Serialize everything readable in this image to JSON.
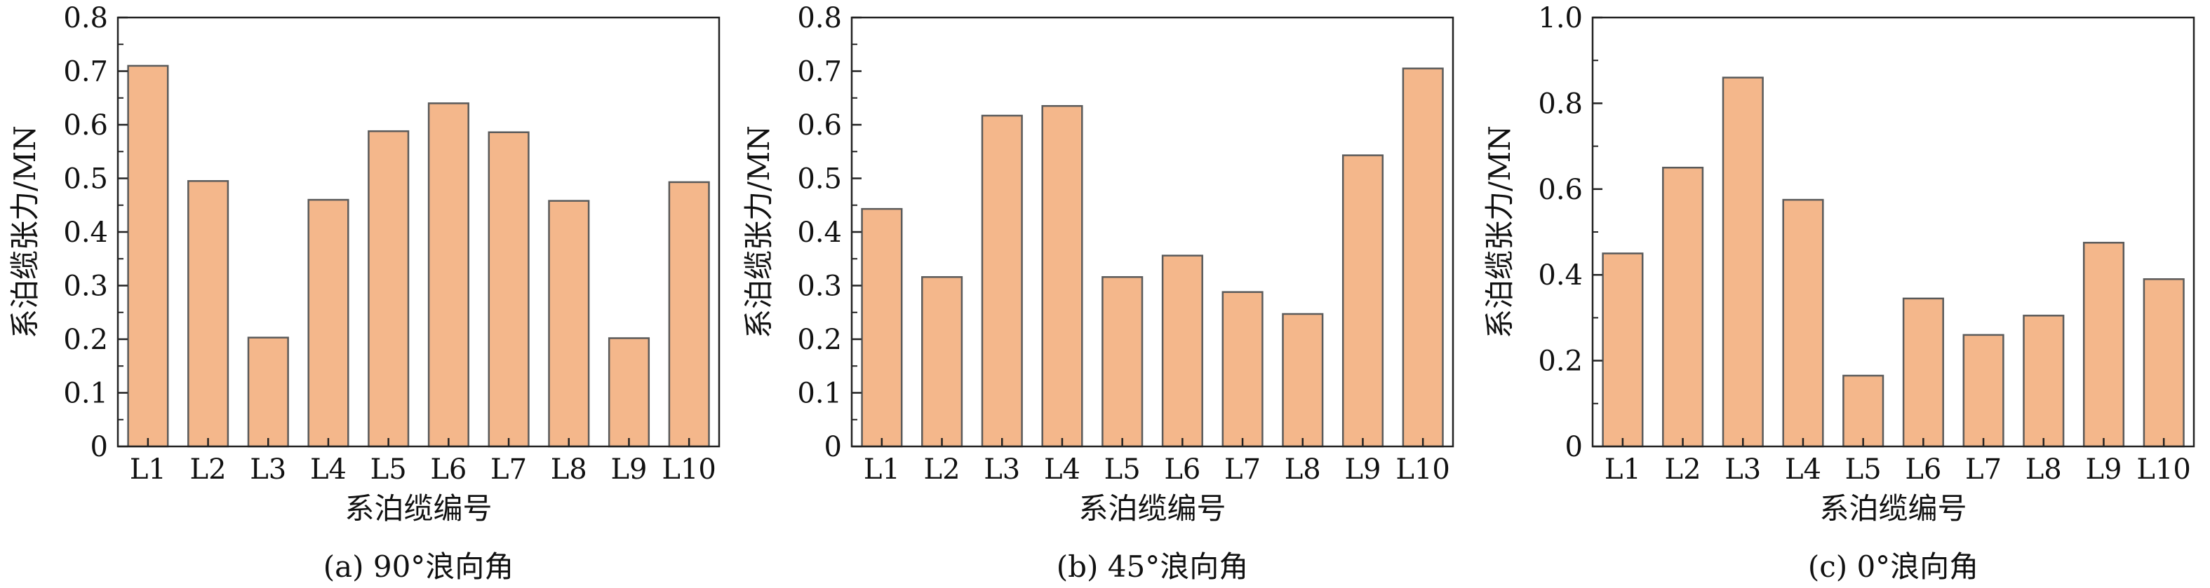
{
  "chart_data": [
    {
      "type": "bar",
      "caption": "(a) 90°浪向角",
      "xlabel": "系泊缆编号",
      "ylabel": "系泊缆张力/MN",
      "categories": [
        "L1",
        "L2",
        "L3",
        "L4",
        "L5",
        "L6",
        "L7",
        "L8",
        "L9",
        "L10"
      ],
      "values": [
        0.71,
        0.495,
        0.203,
        0.46,
        0.588,
        0.64,
        0.586,
        0.458,
        0.202,
        0.493
      ],
      "ylim": [
        0,
        0.8
      ],
      "yticks": [
        "0",
        "0.1",
        "0.2",
        "0.3",
        "0.4",
        "0.5",
        "0.6",
        "0.7",
        "0.8"
      ],
      "bar_color": "#f4b78b",
      "grid": false
    },
    {
      "type": "bar",
      "caption": "(b) 45°浪向角",
      "xlabel": "系泊缆编号",
      "ylabel": "系泊缆张力/MN",
      "categories": [
        "L1",
        "L2",
        "L3",
        "L4",
        "L5",
        "L6",
        "L7",
        "L8",
        "L9",
        "L10"
      ],
      "values": [
        0.443,
        0.316,
        0.617,
        0.635,
        0.316,
        0.356,
        0.288,
        0.247,
        0.543,
        0.705
      ],
      "ylim": [
        0,
        0.8
      ],
      "yticks": [
        "0",
        "0.1",
        "0.2",
        "0.3",
        "0.4",
        "0.5",
        "0.6",
        "0.7",
        "0.8"
      ],
      "bar_color": "#f4b78b",
      "grid": false
    },
    {
      "type": "bar",
      "caption": "(c) 0°浪向角",
      "xlabel": "系泊缆编号",
      "ylabel": "系泊缆张力/MN",
      "categories": [
        "L1",
        "L2",
        "L3",
        "L4",
        "L5",
        "L6",
        "L7",
        "L8",
        "L9",
        "L10"
      ],
      "values": [
        0.45,
        0.65,
        0.86,
        0.575,
        0.165,
        0.345,
        0.26,
        0.305,
        0.475,
        0.39
      ],
      "ylim": [
        0,
        1.0
      ],
      "yticks": [
        "0",
        "0.2",
        "0.4",
        "0.6",
        "0.8",
        "1.0"
      ],
      "bar_color": "#f4b78b",
      "grid": false
    }
  ]
}
